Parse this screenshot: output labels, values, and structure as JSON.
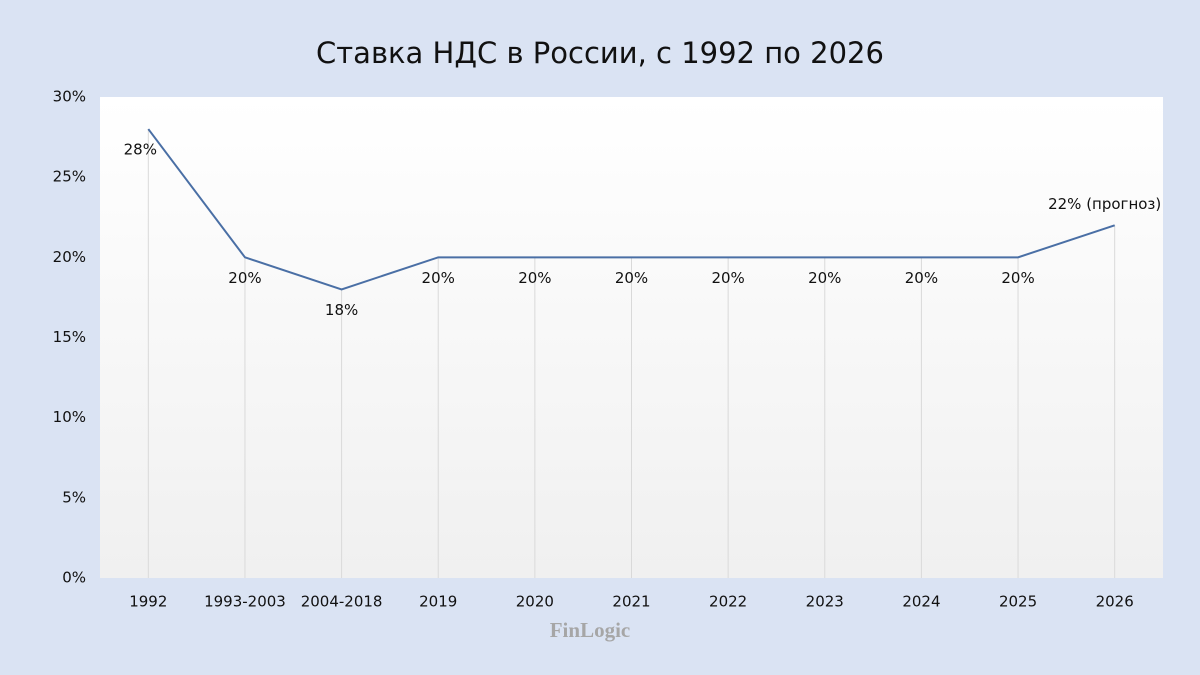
{
  "chart_data": {
    "type": "line",
    "title": "Ставка НДС в России, с 1992 по 2026",
    "categories": [
      "1992",
      "1993-2003",
      "2004-2018",
      "2019",
      "2020",
      "2021",
      "2022",
      "2023",
      "2024",
      "2025",
      "2026"
    ],
    "series": [
      {
        "color": "#4a6fa5",
        "values": [
          28,
          20,
          18,
          20,
          20,
          20,
          20,
          20,
          20,
          20,
          22
        ],
        "value_labels": [
          "28%",
          "20%",
          "18%",
          "20%",
          "20%",
          "20%",
          "20%",
          "20%",
          "20%",
          "20%",
          "22% (прогноз)"
        ]
      }
    ],
    "ylim": [
      0,
      30
    ],
    "yticks": [
      {
        "value": 0,
        "label": "0%"
      },
      {
        "value": 5,
        "label": "5%"
      },
      {
        "value": 10,
        "label": "10%"
      },
      {
        "value": 15,
        "label": "15%"
      },
      {
        "value": 20,
        "label": "20%"
      },
      {
        "value": 25,
        "label": "25%"
      },
      {
        "value": 30,
        "label": "30%"
      }
    ],
    "drop_lines": true,
    "watermark": "FinLogic"
  }
}
